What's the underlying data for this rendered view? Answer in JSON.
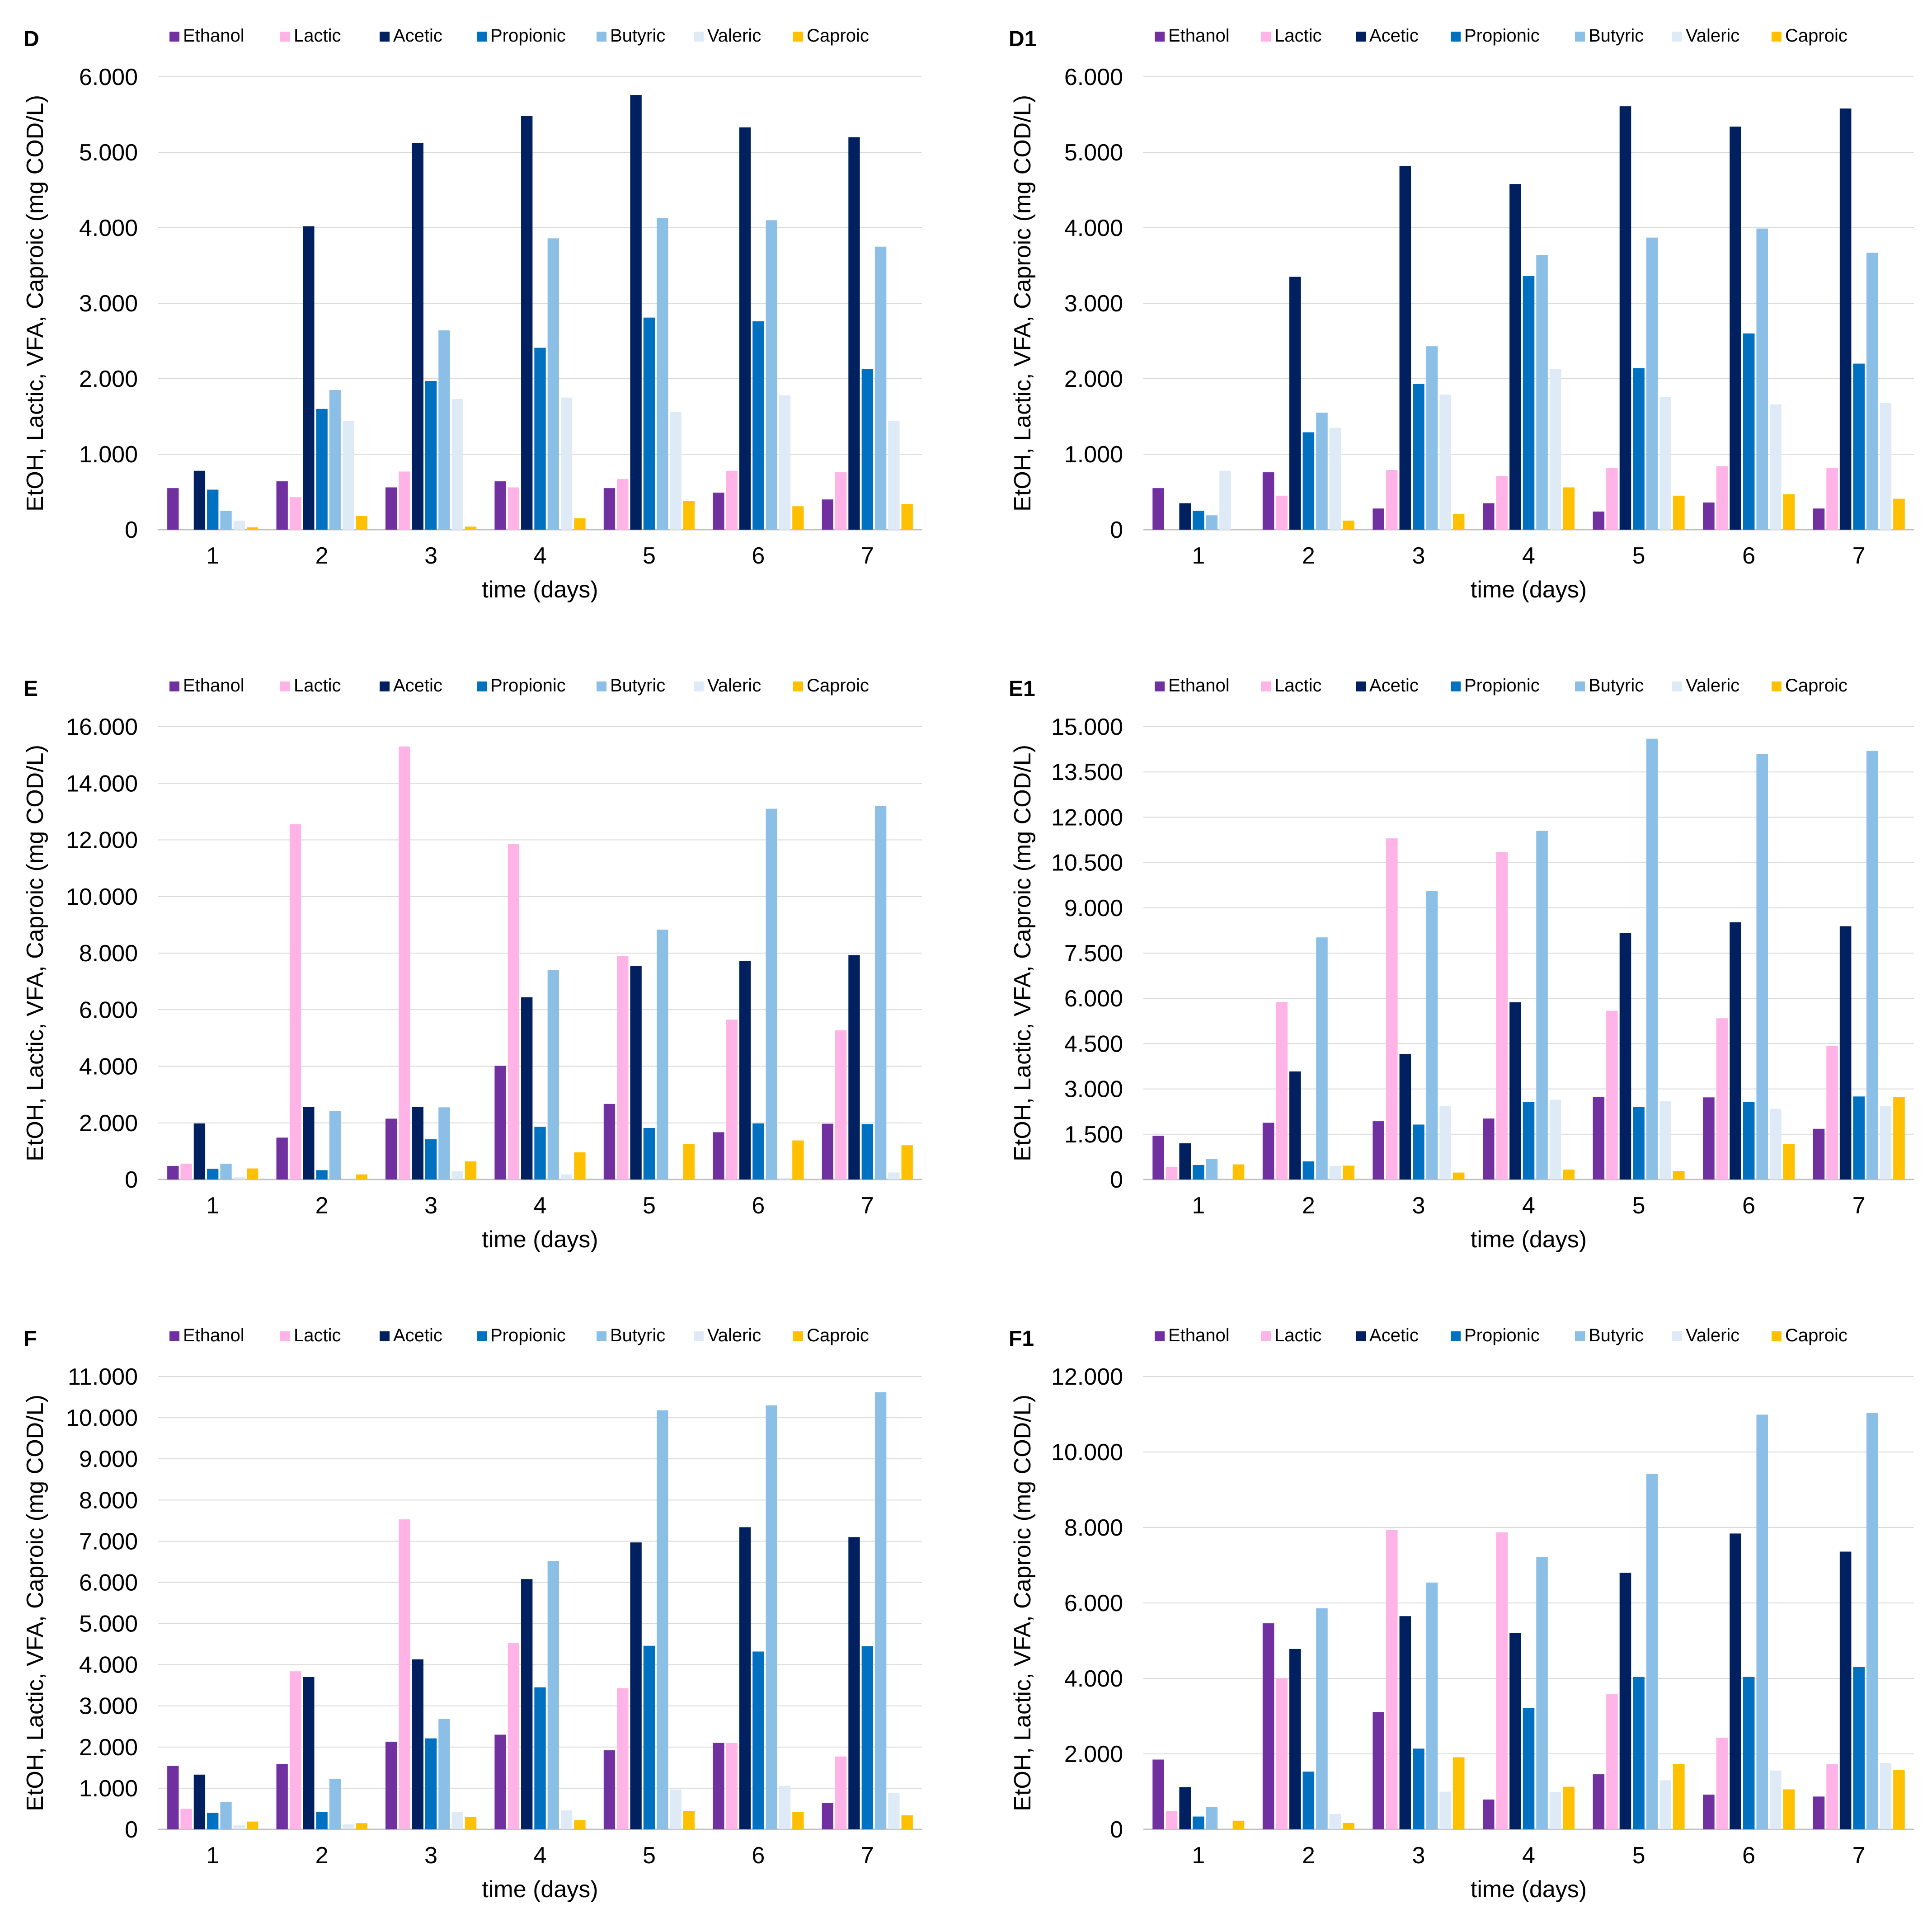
{
  "series_names": [
    "Ethanol",
    "Lactic",
    "Acetic",
    "Propionic",
    "Butyric",
    "Valeric",
    "Caproic"
  ],
  "series_colors": [
    "#7030a0",
    "#ffb3e6",
    "#002060",
    "#0070c0",
    "#8cbfe6",
    "#deebf7",
    "#ffc000"
  ],
  "chart_data": [
    {
      "type": "bar",
      "panel": "D",
      "categories": [
        "1",
        "2",
        "3",
        "4",
        "5",
        "6",
        "7"
      ],
      "xlabel": "time (days)",
      "ylabel": "EtOH, Lactic, VFA, Caproic (mg COD/L)",
      "ylim": [
        0,
        6000
      ],
      "yticks": [
        "0",
        "1.000",
        "2.000",
        "3.000",
        "4.000",
        "5.000",
        "6.000"
      ],
      "series": [
        {
          "name": "Ethanol",
          "values": [
            550,
            640,
            560,
            640,
            550,
            490,
            400
          ]
        },
        {
          "name": "Lactic",
          "values": [
            0,
            430,
            770,
            560,
            670,
            780,
            760
          ]
        },
        {
          "name": "Acetic",
          "values": [
            780,
            4020,
            5120,
            5480,
            5760,
            5330,
            5200
          ]
        },
        {
          "name": "Propionic",
          "values": [
            530,
            1600,
            1970,
            2410,
            2810,
            2760,
            2130
          ]
        },
        {
          "name": "Butyric",
          "values": [
            250,
            1850,
            2640,
            3860,
            4130,
            4100,
            3750
          ]
        },
        {
          "name": "Valeric",
          "values": [
            120,
            1440,
            1730,
            1750,
            1560,
            1780,
            1440
          ]
        },
        {
          "name": "Caproic",
          "values": [
            30,
            180,
            40,
            150,
            380,
            310,
            340
          ]
        }
      ]
    },
    {
      "type": "bar",
      "panel": "D1",
      "categories": [
        "1",
        "2",
        "3",
        "4",
        "5",
        "6",
        "7"
      ],
      "xlabel": "time (days)",
      "ylabel": "EtOH, Lactic, VFA, Caproic (mg COD/L)",
      "ylim": [
        0,
        6000
      ],
      "yticks": [
        "0",
        "1.000",
        "2.000",
        "3.000",
        "4.000",
        "5.000",
        "6.000"
      ],
      "series": [
        {
          "name": "Ethanol",
          "values": [
            550,
            760,
            280,
            350,
            240,
            360,
            280
          ]
        },
        {
          "name": "Lactic",
          "values": [
            0,
            450,
            790,
            710,
            820,
            840,
            820
          ]
        },
        {
          "name": "Acetic",
          "values": [
            350,
            3350,
            4820,
            4580,
            5610,
            5340,
            5580
          ]
        },
        {
          "name": "Propionic",
          "values": [
            250,
            1290,
            1930,
            3360,
            2140,
            2600,
            2200
          ]
        },
        {
          "name": "Butyric",
          "values": [
            190,
            1550,
            2430,
            3640,
            3870,
            3990,
            3670
          ]
        },
        {
          "name": "Valeric",
          "values": [
            780,
            1350,
            1790,
            2130,
            1760,
            1660,
            1680
          ]
        },
        {
          "name": "Caproic",
          "values": [
            0,
            120,
            210,
            560,
            450,
            470,
            410
          ]
        }
      ]
    },
    {
      "type": "bar",
      "panel": "E",
      "categories": [
        "1",
        "2",
        "3",
        "4",
        "5",
        "6",
        "7"
      ],
      "xlabel": "time (days)",
      "ylabel": "EtOH, Lactic, VFA, Caproic (mg COD/L)",
      "ylim": [
        0,
        16000
      ],
      "yticks": [
        "0",
        "2.000",
        "4.000",
        "6.000",
        "8.000",
        "10.000",
        "12.000",
        "14.000",
        "16.000"
      ],
      "series": [
        {
          "name": "Ethanol",
          "values": [
            480,
            1480,
            2150,
            4020,
            2670,
            1670,
            1970
          ]
        },
        {
          "name": "Lactic",
          "values": [
            560,
            12550,
            15300,
            11850,
            7900,
            5650,
            5270
          ]
        },
        {
          "name": "Acetic",
          "values": [
            1980,
            2560,
            2570,
            6440,
            7550,
            7720,
            7930
          ]
        },
        {
          "name": "Propionic",
          "values": [
            380,
            330,
            1420,
            1860,
            1820,
            1980,
            1960
          ]
        },
        {
          "name": "Butyric",
          "values": [
            560,
            2420,
            2550,
            7400,
            8830,
            13100,
            13200
          ]
        },
        {
          "name": "Valeric",
          "values": [
            80,
            0,
            290,
            180,
            0,
            50,
            250
          ]
        },
        {
          "name": "Caproic",
          "values": [
            390,
            180,
            640,
            960,
            1250,
            1380,
            1210
          ]
        }
      ]
    },
    {
      "type": "bar",
      "panel": "E1",
      "categories": [
        "1",
        "2",
        "3",
        "4",
        "5",
        "6",
        "7"
      ],
      "xlabel": "time (days)",
      "ylabel": "EtOH, Lactic, VFA, Caproic (mg COD/L)",
      "ylim": [
        0,
        15000
      ],
      "yticks": [
        "0",
        "1.500",
        "3.000",
        "4.500",
        "6.000",
        "7.500",
        "9.000",
        "10.500",
        "12.000",
        "13.500",
        "15.000"
      ],
      "series": [
        {
          "name": "Ethanol",
          "values": [
            1450,
            1880,
            1930,
            2020,
            2740,
            2720,
            1680
          ]
        },
        {
          "name": "Lactic",
          "values": [
            420,
            5880,
            11300,
            10850,
            5590,
            5340,
            4430
          ]
        },
        {
          "name": "Acetic",
          "values": [
            1200,
            3580,
            4160,
            5870,
            8160,
            8520,
            8390
          ]
        },
        {
          "name": "Propionic",
          "values": [
            480,
            600,
            1820,
            2560,
            2400,
            2560,
            2750
          ]
        },
        {
          "name": "Butyric",
          "values": [
            680,
            8020,
            9560,
            11550,
            14600,
            14100,
            14200
          ]
        },
        {
          "name": "Valeric",
          "values": [
            0,
            450,
            2440,
            2640,
            2590,
            2340,
            2430
          ]
        },
        {
          "name": "Caproic",
          "values": [
            500,
            460,
            230,
            330,
            280,
            1180,
            2730
          ]
        }
      ]
    },
    {
      "type": "bar",
      "panel": "F",
      "categories": [
        "1",
        "2",
        "3",
        "4",
        "5",
        "6",
        "7"
      ],
      "xlabel": "time (days)",
      "ylabel": "EtOH, Lactic, VFA, Caproic (mg COD/L)",
      "ylim": [
        0,
        11000
      ],
      "yticks": [
        "0",
        "1.000",
        "2.000",
        "3.000",
        "4.000",
        "5.000",
        "6.000",
        "7.000",
        "8.000",
        "9.000",
        "10.000",
        "11.000"
      ],
      "series": [
        {
          "name": "Ethanol",
          "values": [
            1540,
            1590,
            2130,
            2300,
            1920,
            2100,
            640
          ]
        },
        {
          "name": "Lactic",
          "values": [
            500,
            3840,
            7530,
            4530,
            3430,
            2100,
            1770
          ]
        },
        {
          "name": "Acetic",
          "values": [
            1330,
            3700,
            4130,
            6080,
            6970,
            7340,
            7100
          ]
        },
        {
          "name": "Propionic",
          "values": [
            400,
            420,
            2210,
            3450,
            4460,
            4320,
            4450
          ]
        },
        {
          "name": "Butyric",
          "values": [
            660,
            1230,
            2680,
            6520,
            10180,
            10300,
            10620
          ]
        },
        {
          "name": "Valeric",
          "values": [
            100,
            120,
            420,
            460,
            970,
            1060,
            880
          ]
        },
        {
          "name": "Caproic",
          "values": [
            190,
            150,
            300,
            220,
            450,
            420,
            340
          ]
        }
      ]
    },
    {
      "type": "bar",
      "panel": "F1",
      "categories": [
        "1",
        "2",
        "3",
        "4",
        "5",
        "6",
        "7"
      ],
      "xlabel": "time (days)",
      "ylabel": "EtOH, Lactic, VFA, Caproic (mg COD/L)",
      "ylim": [
        0,
        12000
      ],
      "yticks": [
        "0",
        "2.000",
        "4.000",
        "6.000",
        "8.000",
        "10.000",
        "12.000"
      ],
      "series": [
        {
          "name": "Ethanol",
          "values": [
            1850,
            5460,
            3110,
            790,
            1460,
            920,
            870
          ]
        },
        {
          "name": "Lactic",
          "values": [
            490,
            4000,
            7930,
            7870,
            3580,
            2430,
            1730
          ]
        },
        {
          "name": "Acetic",
          "values": [
            1120,
            4780,
            5650,
            5200,
            6800,
            7840,
            7360
          ]
        },
        {
          "name": "Propionic",
          "values": [
            340,
            1530,
            2140,
            3220,
            4040,
            4040,
            4300
          ]
        },
        {
          "name": "Butyric",
          "values": [
            590,
            5860,
            6540,
            7220,
            9420,
            10990,
            11030
          ]
        },
        {
          "name": "Valeric",
          "values": [
            0,
            410,
            1000,
            990,
            1300,
            1560,
            1760
          ]
        },
        {
          "name": "Caproic",
          "values": [
            230,
            170,
            1910,
            1130,
            1730,
            1060,
            1580
          ]
        }
      ]
    }
  ]
}
